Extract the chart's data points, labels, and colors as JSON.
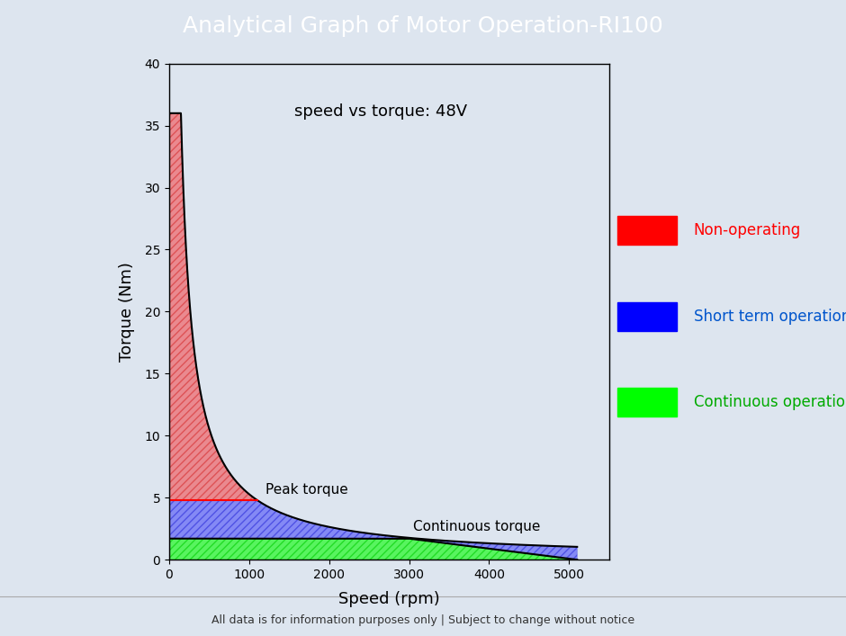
{
  "title": "Analytical Graph of Motor Operation-RI100",
  "title_bg_color": "#4d7ea8",
  "title_color": "white",
  "subtitle": "speed vs torque: 48V",
  "xlabel": "Speed (rpm)",
  "ylabel": "Torque (Nm)",
  "bg_color": "#dde5ef",
  "plot_bg_color": "#dde5ef",
  "xlim": [
    0,
    5500
  ],
  "ylim": [
    0,
    40
  ],
  "xticks": [
    0,
    1000,
    2000,
    3000,
    4000,
    5000
  ],
  "yticks": [
    0,
    5,
    10,
    15,
    20,
    25,
    30,
    35,
    40
  ],
  "peak_torque": 4.8,
  "peak_torque_speed": 1100,
  "continuous_torque": 1.7,
  "continuous_torque_speed": 3000,
  "max_speed": 5100,
  "stall_torque": 36,
  "footer_text": "All data is for information purposes only | Subject to change without notice",
  "legend_labels": [
    "Non-operating",
    "Short term operation",
    "Continuous operation"
  ],
  "legend_colors": [
    "#ff0000",
    "#0000ff",
    "#00ff00"
  ],
  "legend_text_colors": [
    "#ff0000",
    "#0055cc",
    "#00aa00"
  ],
  "annotation_peak": "Peak torque",
  "annotation_continuous": "Continuous torque",
  "title_fontsize": 18,
  "footer_fontsize": 9,
  "subtitle_fontsize": 13,
  "axis_label_fontsize": 13,
  "tick_fontsize": 10,
  "legend_fontsize": 12
}
